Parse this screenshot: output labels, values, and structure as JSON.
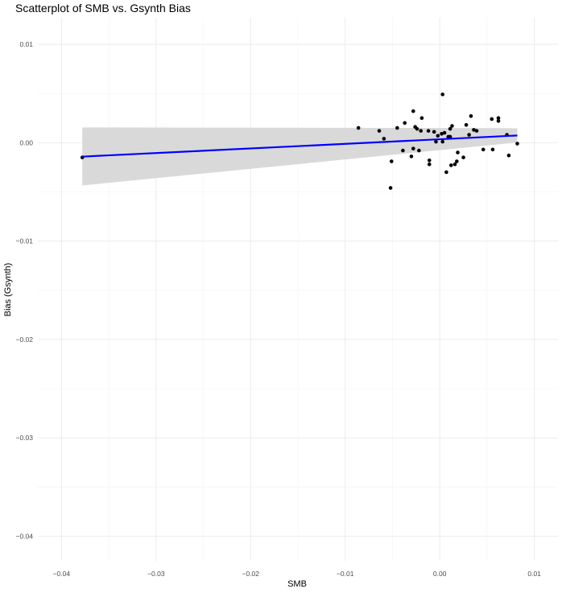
{
  "chart_data": {
    "type": "scatter",
    "title": "Scatterplot of SMB vs. Gsynth Bias",
    "xlabel": "SMB",
    "ylabel": "Bias (Gsynth)",
    "xlim": [
      -0.0425,
      0.0125
    ],
    "ylim": [
      -0.0425,
      0.0127
    ],
    "x_ticks": [
      -0.04,
      -0.03,
      -0.02,
      -0.01,
      0.0,
      0.01
    ],
    "x_tick_labels": [
      "−0.04",
      "−0.03",
      "−0.02",
      "−0.01",
      "0.00",
      "0.01"
    ],
    "y_ticks": [
      -0.04,
      -0.03,
      -0.02,
      -0.01,
      0.0,
      0.01
    ],
    "y_tick_labels": [
      "−0.04",
      "−0.03",
      "−0.02",
      "−0.01",
      "0.00",
      "0.01"
    ],
    "grid": true,
    "point_color": "#000000",
    "line_color": "#0000ff",
    "band_color": "#d9d9d9",
    "points": [
      {
        "x": -0.0378,
        "y": -0.0015
      },
      {
        "x": -0.0086,
        "y": 0.0015
      },
      {
        "x": -0.0064,
        "y": 0.0012
      },
      {
        "x": -0.0059,
        "y": 0.0004
      },
      {
        "x": -0.0052,
        "y": -0.0046
      },
      {
        "x": -0.0051,
        "y": -0.0019
      },
      {
        "x": -0.0045,
        "y": 0.0015
      },
      {
        "x": -0.0039,
        "y": -0.0008
      },
      {
        "x": -0.0037,
        "y": 0.002
      },
      {
        "x": -0.003,
        "y": -0.0014
      },
      {
        "x": -0.0028,
        "y": 0.0032
      },
      {
        "x": -0.0028,
        "y": -0.0006
      },
      {
        "x": -0.0026,
        "y": 0.0016
      },
      {
        "x": -0.0024,
        "y": 0.0014
      },
      {
        "x": -0.0022,
        "y": -0.0008
      },
      {
        "x": -0.002,
        "y": 0.0012
      },
      {
        "x": -0.0019,
        "y": 0.0025
      },
      {
        "x": -0.0012,
        "y": 0.0012
      },
      {
        "x": -0.0011,
        "y": -0.0018
      },
      {
        "x": -0.0011,
        "y": -0.0022
      },
      {
        "x": -0.0006,
        "y": 0.0011
      },
      {
        "x": -0.0004,
        "y": 0.0001
      },
      {
        "x": -0.0002,
        "y": 0.0007
      },
      {
        "x": 0.0002,
        "y": 0.0009
      },
      {
        "x": 0.0003,
        "y": 0.0001
      },
      {
        "x": 0.0003,
        "y": 0.0049
      },
      {
        "x": 0.0005,
        "y": 0.001
      },
      {
        "x": 0.0007,
        "y": -0.003
      },
      {
        "x": 0.0009,
        "y": 0.0006
      },
      {
        "x": 0.0011,
        "y": 0.0006
      },
      {
        "x": 0.0011,
        "y": 0.0014
      },
      {
        "x": 0.0012,
        "y": -0.0023
      },
      {
        "x": 0.0013,
        "y": 0.0017
      },
      {
        "x": 0.0016,
        "y": -0.0022
      },
      {
        "x": 0.0018,
        "y": -0.0019
      },
      {
        "x": 0.0019,
        "y": -0.001
      },
      {
        "x": 0.0025,
        "y": -0.0015
      },
      {
        "x": 0.0028,
        "y": 0.0018
      },
      {
        "x": 0.0031,
        "y": 0.0008
      },
      {
        "x": 0.0033,
        "y": 0.0027
      },
      {
        "x": 0.0036,
        "y": 0.0013
      },
      {
        "x": 0.0039,
        "y": 0.0012
      },
      {
        "x": 0.0046,
        "y": -0.0007
      },
      {
        "x": 0.0055,
        "y": 0.0024
      },
      {
        "x": 0.0056,
        "y": -0.0007
      },
      {
        "x": 0.0062,
        "y": 0.0025
      },
      {
        "x": 0.0062,
        "y": 0.0022
      },
      {
        "x": 0.0071,
        "y": 0.0008
      },
      {
        "x": 0.0073,
        "y": -0.0013
      },
      {
        "x": 0.0082,
        "y": -0.0001
      }
    ],
    "regression": {
      "x": [
        -0.0378,
        0.0082
      ],
      "y": [
        -0.00142,
        0.00073
      ],
      "ci_lower": [
        -0.00435,
        2e-05
      ],
      "ci_upper": [
        0.00155,
        0.00148
      ]
    }
  }
}
